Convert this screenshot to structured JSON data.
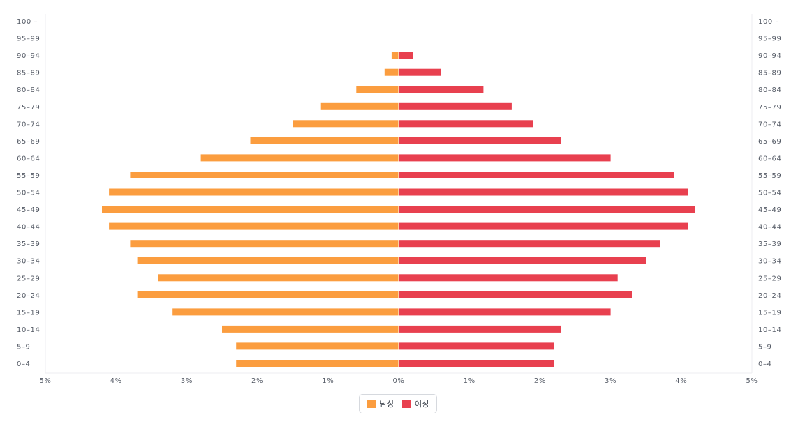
{
  "chart_data": {
    "type": "bar",
    "orientation": "horizontal-diverging",
    "title": "",
    "xlabel": "",
    "ylabel": "",
    "categories": [
      "0–4",
      "5–9",
      "10–14",
      "15–19",
      "20–24",
      "25–29",
      "30–34",
      "35–39",
      "40–44",
      "45–49",
      "50–54",
      "55–59",
      "60–64",
      "65–69",
      "70–74",
      "75–79",
      "80–84",
      "85–89",
      "90–94",
      "95–99",
      "100 –"
    ],
    "series": [
      {
        "name": "남성",
        "color": "#fb9d3f",
        "side": "left",
        "values": [
          2.3,
          2.3,
          2.5,
          3.2,
          3.7,
          3.4,
          3.7,
          3.8,
          4.1,
          4.2,
          4.1,
          3.8,
          2.8,
          2.1,
          1.5,
          1.1,
          0.6,
          0.2,
          0.1,
          0,
          0
        ]
      },
      {
        "name": "여성",
        "color": "#e8404f",
        "side": "right",
        "values": [
          2.2,
          2.2,
          2.3,
          3.0,
          3.3,
          3.1,
          3.5,
          3.7,
          4.1,
          4.2,
          4.1,
          3.9,
          3.0,
          2.3,
          1.9,
          1.6,
          1.2,
          0.6,
          0.2,
          0,
          0
        ]
      }
    ],
    "xlim": [
      -5,
      5
    ],
    "x_ticks": [
      "5%",
      "4%",
      "3%",
      "2%",
      "1%",
      "0%",
      "1%",
      "2%",
      "3%",
      "4%",
      "5%"
    ],
    "grid": false,
    "legend_position": "bottom-center"
  }
}
